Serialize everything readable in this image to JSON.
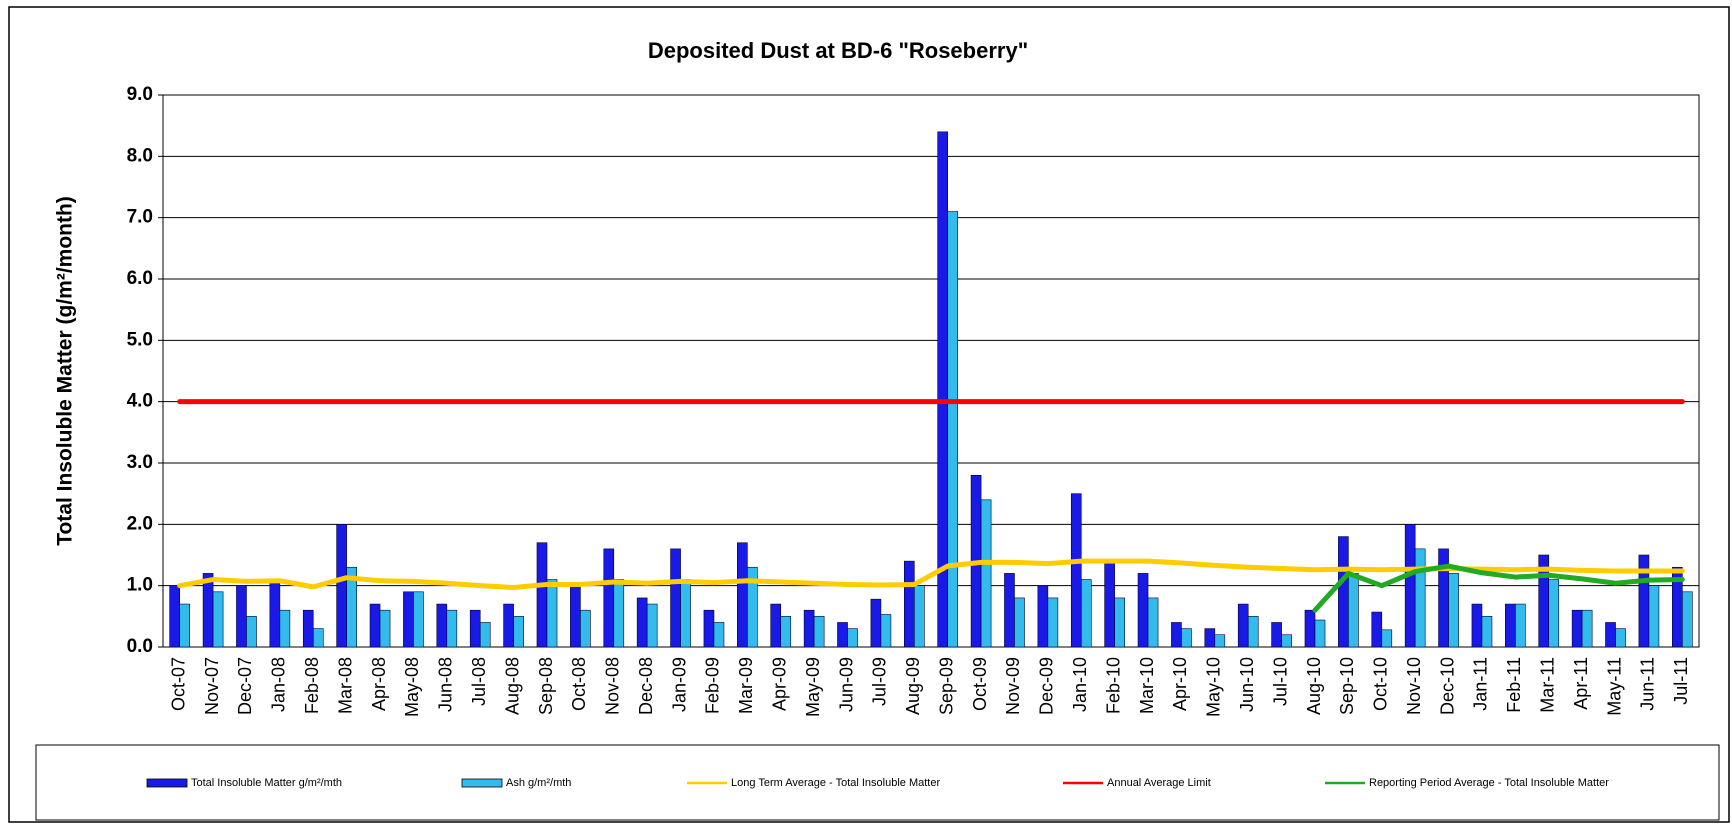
{
  "chart_data": {
    "type": "bar",
    "title": "Deposited Dust at BD-6 \"Roseberry\"",
    "y_label": "Total Insoluble Matter (g/m²/month)",
    "categories": [
      "Oct-07",
      "Nov-07",
      "Dec-07",
      "Jan-08",
      "Feb-08",
      "Mar-08",
      "Apr-08",
      "May-08",
      "Jun-08",
      "Jul-08",
      "Aug-08",
      "Sep-08",
      "Oct-08",
      "Nov-08",
      "Dec-08",
      "Jan-09",
      "Feb-09",
      "Mar-09",
      "Apr-09",
      "May-09",
      "Jun-09",
      "Jul-09",
      "Aug-09",
      "Sep-09",
      "Oct-09",
      "Nov-09",
      "Dec-09",
      "Jan-10",
      "Feb-10",
      "Mar-10",
      "Apr-10",
      "May-10",
      "Jun-10",
      "Jul-10",
      "Aug-10",
      "Sep-10",
      "Oct-10",
      "Nov-10",
      "Dec-10",
      "Jan-11",
      "Feb-11",
      "Mar-11",
      "Apr-11",
      "May-11",
      "Jun-11",
      "Jul-11"
    ],
    "series": [
      {
        "name": "Total Insoluble Matter  g/m²/mth",
        "type": "bar",
        "color": "#1a1ae6",
        "values": [
          1.0,
          1.2,
          1.0,
          1.1,
          0.6,
          2.0,
          0.7,
          0.9,
          0.7,
          0.6,
          0.7,
          1.7,
          1.0,
          1.6,
          0.8,
          1.6,
          0.6,
          1.7,
          0.7,
          0.6,
          0.4,
          0.78,
          1.4,
          8.4,
          2.8,
          1.2,
          1.0,
          2.5,
          1.4,
          1.2,
          0.4,
          0.3,
          0.7,
          0.4,
          0.6,
          1.8,
          0.57,
          2.0,
          1.6,
          0.7,
          0.7,
          1.5,
          0.6,
          0.4,
          1.5,
          1.3
        ]
      },
      {
        "name": "Ash  g/m²/mth",
        "type": "bar",
        "color": "#33bbee",
        "values": [
          0.7,
          0.9,
          0.5,
          0.6,
          0.3,
          1.3,
          0.6,
          0.9,
          0.6,
          0.4,
          0.5,
          1.1,
          0.6,
          1.1,
          0.7,
          1.1,
          0.4,
          1.3,
          0.5,
          0.5,
          0.3,
          0.53,
          1.0,
          7.1,
          2.4,
          0.8,
          0.8,
          1.1,
          0.8,
          0.8,
          0.3,
          0.2,
          0.5,
          0.2,
          0.44,
          1.2,
          0.28,
          1.6,
          1.2,
          0.5,
          0.7,
          1.1,
          0.6,
          0.3,
          1.0,
          0.9
        ]
      },
      {
        "name": "Long Term Average - Total Insoluble Matter",
        "type": "line",
        "color": "#ffcc00",
        "values": [
          1.0,
          1.1,
          1.07,
          1.08,
          0.98,
          1.13,
          1.08,
          1.07,
          1.04,
          1.0,
          0.97,
          1.02,
          1.02,
          1.06,
          1.04,
          1.07,
          1.05,
          1.08,
          1.06,
          1.04,
          1.02,
          1.01,
          1.02,
          1.32,
          1.38,
          1.38,
          1.36,
          1.4,
          1.4,
          1.4,
          1.37,
          1.33,
          1.3,
          1.28,
          1.26,
          1.27,
          1.26,
          1.27,
          1.28,
          1.27,
          1.26,
          1.27,
          1.25,
          1.24,
          1.24,
          1.24
        ]
      },
      {
        "name": "Annual Average Limit",
        "type": "line",
        "color": "#ff0000",
        "values": [
          4,
          4,
          4,
          4,
          4,
          4,
          4,
          4,
          4,
          4,
          4,
          4,
          4,
          4,
          4,
          4,
          4,
          4,
          4,
          4,
          4,
          4,
          4,
          4,
          4,
          4,
          4,
          4,
          4,
          4,
          4,
          4,
          4,
          4,
          4,
          4,
          4,
          4,
          4,
          4,
          4,
          4,
          4,
          4,
          4,
          4
        ]
      },
      {
        "name": "Reporting Period Average - Total Insoluble Matter",
        "type": "line",
        "color": "#22aa22",
        "values": [
          null,
          null,
          null,
          null,
          null,
          null,
          null,
          null,
          null,
          null,
          null,
          null,
          null,
          null,
          null,
          null,
          null,
          null,
          null,
          null,
          null,
          null,
          null,
          null,
          null,
          null,
          null,
          null,
          null,
          null,
          null,
          null,
          null,
          null,
          0.6,
          1.2,
          1.0,
          1.23,
          1.32,
          1.21,
          1.14,
          1.17,
          1.11,
          1.04,
          1.09,
          1.1
        ]
      }
    ],
    "ylim": [
      0,
      9
    ],
    "yticks": [
      {
        "value": 0,
        "label": "0.0"
      },
      {
        "value": 1,
        "label": "1.0"
      },
      {
        "value": 2,
        "label": "2.0"
      },
      {
        "value": 3,
        "label": "3.0"
      },
      {
        "value": 4,
        "label": "4.0"
      },
      {
        "value": 5,
        "label": "5.0"
      },
      {
        "value": 6,
        "label": "6.0"
      },
      {
        "value": 7,
        "label": "7.0"
      },
      {
        "value": 8,
        "label": "8.0"
      },
      {
        "value": 9,
        "label": "9.0"
      }
    ],
    "grid": true,
    "legend": "bottom"
  }
}
